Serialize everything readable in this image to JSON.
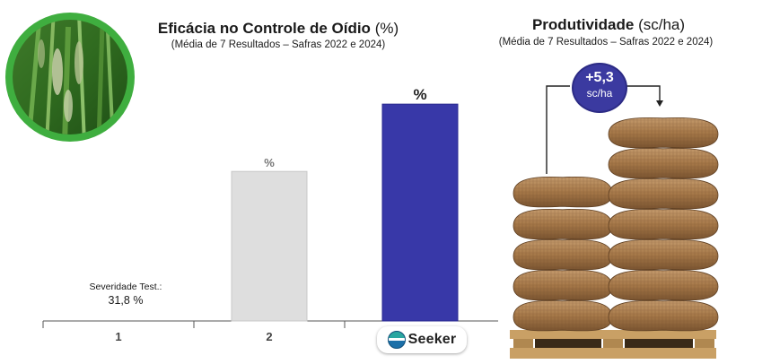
{
  "left_chart": {
    "title_main": "Eficácia no Controle de Oídio",
    "title_unit": "(%)",
    "subtitle": "(Média de 7 Resultados – Safras 2022 e 2024)"
  },
  "right_chart": {
    "title_main": "Produtividade",
    "title_unit": "(sc/ha)",
    "subtitle": "(Média de 7 Resultados – Safras 2022 e 2024)",
    "badge_value": "+5,3",
    "badge_unit": "sc/ha"
  },
  "severity": {
    "label": "Severidade Test.:",
    "value": "31,8 %"
  },
  "brand": {
    "name": "Seeker"
  },
  "chart_data": {
    "type": "bar",
    "categories": [
      "1",
      "2",
      ""
    ],
    "values": [
      0,
      0.6,
      0.87
    ],
    "data_labels": [
      "",
      "%",
      "%"
    ],
    "colors": [
      "#d9d9d9",
      "#dedede",
      "#3838a8"
    ],
    "ylim": [
      0,
      1
    ],
    "grid": false,
    "xlabel": "",
    "ylabel": ""
  }
}
